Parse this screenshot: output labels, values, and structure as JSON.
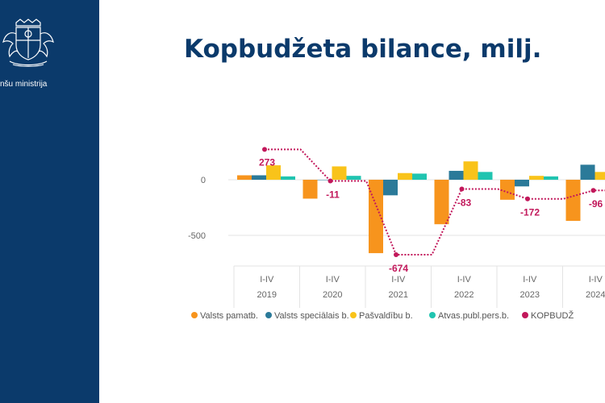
{
  "sidebar": {
    "ministry_text": "nšu ministrija",
    "logo": "coat-of-arms-icon",
    "bg_color": "#0b3a6b"
  },
  "slide": {
    "title": "Kopbudžeta bilance, milj."
  },
  "chart_data": {
    "type": "bar",
    "title": "Kopbudžeta bilance, milj.",
    "categories": [
      "I-IV 2019",
      "I-IV 2020",
      "I-IV 2021",
      "I-IV 2022",
      "I-IV 2023",
      "I-IV 2024"
    ],
    "category_lines": [
      [
        "I-IV",
        "2019"
      ],
      [
        "I-IV",
        "2020"
      ],
      [
        "I-IV",
        "2021"
      ],
      [
        "I-IV",
        "2022"
      ],
      [
        "I-IV",
        "2023"
      ],
      [
        "I-IV",
        "2024"
      ]
    ],
    "y_ticks": [
      0,
      -500
    ],
    "y_tick_labels": [
      "0",
      "-500"
    ],
    "ylim": [
      -700,
      320
    ],
    "grid": true,
    "legend_position": "bottom",
    "series": [
      {
        "name": "Valsts pamatb.",
        "color": "#f7941d",
        "values": [
          40,
          -170,
          -660,
          -400,
          -180,
          -370
        ]
      },
      {
        "name": "Valsts speciālais b.",
        "color": "#2b7a99",
        "values": [
          40,
          0,
          -140,
          80,
          -60,
          135
        ]
      },
      {
        "name": "Pašvaldību b.",
        "color": "#f9c31a",
        "values": [
          130,
          120,
          60,
          165,
          35,
          70
        ]
      },
      {
        "name": "Atvas.publ.pers.b.",
        "color": "#20c4b0",
        "values": [
          30,
          35,
          55,
          70,
          30,
          0
        ]
      },
      {
        "name": "KOPBUDŽ",
        "color": "#c2185b",
        "type": "step-line",
        "values": [
          273,
          -11,
          -674,
          -83,
          -172,
          -96
        ],
        "labels": [
          "273",
          "-11",
          "-674",
          "-83",
          "-172",
          "-96"
        ]
      }
    ]
  }
}
